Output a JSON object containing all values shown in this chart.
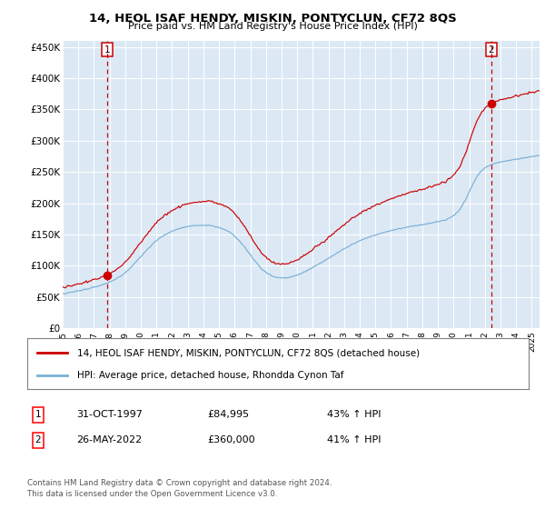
{
  "title": "14, HEOL ISAF HENDY, MISKIN, PONTYCLUN, CF72 8QS",
  "subtitle": "Price paid vs. HM Land Registry's House Price Index (HPI)",
  "plot_bg_color": "#dce9f5",
  "red_line_color": "#cc0000",
  "blue_line_color": "#7ab0d4",
  "sale1_x": 1997.83,
  "sale1_y": 84995,
  "sale2_x": 2022.4,
  "sale2_y": 360000,
  "ylim": [
    0,
    460000
  ],
  "xlim": [
    1995.0,
    2025.5
  ],
  "yticks": [
    0,
    50000,
    100000,
    150000,
    200000,
    250000,
    300000,
    350000,
    400000,
    450000
  ],
  "ytick_labels": [
    "£0",
    "£50K",
    "£100K",
    "£150K",
    "£200K",
    "£250K",
    "£300K",
    "£350K",
    "£400K",
    "£450K"
  ],
  "xtick_years": [
    1995,
    1996,
    1997,
    1998,
    1999,
    2000,
    2001,
    2002,
    2003,
    2004,
    2005,
    2006,
    2007,
    2008,
    2009,
    2010,
    2011,
    2012,
    2013,
    2014,
    2015,
    2016,
    2017,
    2018,
    2019,
    2020,
    2021,
    2022,
    2023,
    2024,
    2025
  ],
  "legend_red_label": "14, HEOL ISAF HENDY, MISKIN, PONTYCLUN, CF72 8QS (detached house)",
  "legend_blue_label": "HPI: Average price, detached house, Rhondda Cynon Taf",
  "footnote": "Contains HM Land Registry data © Crown copyright and database right 2024.\nThis data is licensed under the Open Government Licence v3.0.",
  "sale1_date": "31-OCT-1997",
  "sale1_price": "£84,995",
  "sale1_hpi": "43% ↑ HPI",
  "sale2_date": "26-MAY-2022",
  "sale2_price": "£360,000",
  "sale2_hpi": "41% ↑ HPI"
}
